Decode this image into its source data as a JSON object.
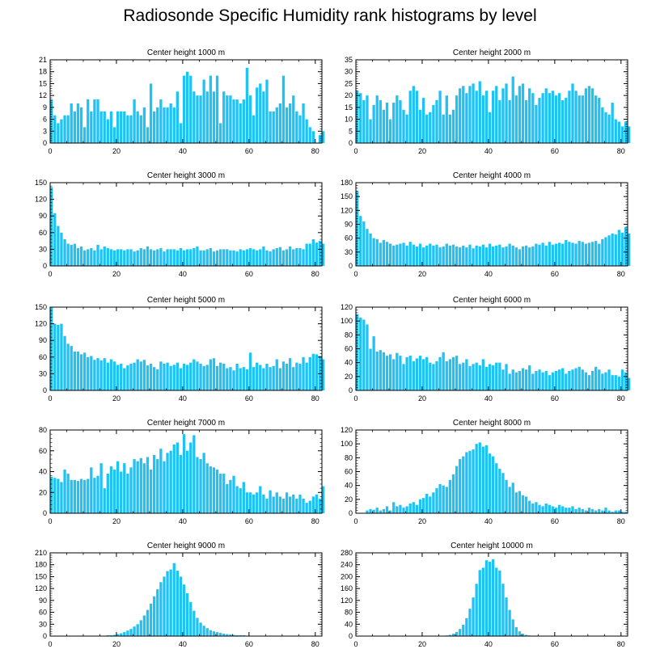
{
  "title": "Radiosonde Specific Humidity rank histograms by level",
  "bar_color": "#1ec2f5",
  "chart_data": [
    {
      "type": "bar",
      "title": "Center height 1000 m",
      "xlabel": "",
      "ylabel": "",
      "xlim": [
        0,
        82
      ],
      "ylim": [
        0,
        21
      ],
      "xticks": [
        0,
        20,
        40,
        60,
        80
      ],
      "yticks": [
        0,
        3,
        6,
        9,
        12,
        15,
        18,
        21
      ],
      "values": [
        11,
        7,
        5,
        6,
        7,
        7,
        10,
        8,
        10,
        9,
        4,
        11,
        8,
        11,
        11,
        8,
        8,
        6,
        8,
        4,
        8,
        8,
        8,
        7,
        7,
        11,
        8,
        7,
        9,
        4,
        15,
        8,
        9,
        11,
        9,
        9,
        10,
        9,
        13,
        5,
        17,
        18,
        17,
        13,
        12,
        12,
        16,
        13,
        17,
        13,
        17,
        5,
        13,
        12,
        12,
        11,
        11,
        10,
        11,
        19,
        12,
        7,
        14,
        15,
        13,
        16,
        8,
        8,
        9,
        10,
        17,
        9,
        10,
        12,
        8,
        7,
        10,
        6,
        4,
        3,
        0,
        2,
        3
      ]
    },
    {
      "type": "bar",
      "title": "Center height 2000 m",
      "xlabel": "",
      "ylabel": "",
      "xlim": [
        0,
        82
      ],
      "ylim": [
        0,
        35
      ],
      "xticks": [
        0,
        20,
        40,
        60,
        80
      ],
      "yticks": [
        0,
        5,
        10,
        15,
        20,
        25,
        30,
        35
      ],
      "values": [
        22,
        21,
        18,
        20,
        10,
        16,
        20,
        18,
        14,
        17,
        10,
        17,
        20,
        18,
        14,
        12,
        22,
        24,
        22,
        14,
        19,
        12,
        13,
        16,
        18,
        22,
        12,
        20,
        12,
        14,
        20,
        23,
        24,
        21,
        24,
        25,
        22,
        26,
        20,
        22,
        13,
        22,
        24,
        18,
        23,
        25,
        18,
        28,
        20,
        24,
        25,
        18,
        23,
        21,
        16,
        19,
        21,
        23,
        21,
        22,
        20,
        21,
        18,
        19,
        22,
        25,
        22,
        20,
        20,
        23,
        24,
        23,
        20,
        19,
        15,
        13,
        12,
        17,
        10,
        9,
        7,
        9,
        7
      ]
    },
    {
      "type": "bar",
      "title": "Center height 3000 m",
      "xlabel": "",
      "ylabel": "",
      "xlim": [
        0,
        82
      ],
      "ylim": [
        0,
        150
      ],
      "xticks": [
        0,
        20,
        40,
        60,
        80
      ],
      "yticks": [
        0,
        30,
        60,
        90,
        120,
        150
      ],
      "values": [
        142,
        95,
        72,
        60,
        48,
        40,
        38,
        40,
        32,
        35,
        28,
        30,
        32,
        28,
        38,
        30,
        35,
        32,
        30,
        28,
        30,
        30,
        28,
        30,
        30,
        26,
        28,
        32,
        30,
        35,
        30,
        28,
        30,
        32,
        26,
        30,
        30,
        30,
        28,
        32,
        28,
        30,
        30,
        32,
        35,
        28,
        28,
        30,
        32,
        26,
        28,
        30,
        30,
        30,
        28,
        28,
        26,
        30,
        28,
        30,
        32,
        30,
        28,
        30,
        35,
        28,
        26,
        30,
        32,
        34,
        28,
        30,
        35,
        30,
        32,
        32,
        30,
        40,
        40,
        48,
        42,
        45,
        40
      ]
    },
    {
      "type": "bar",
      "title": "Center height 4000 m",
      "xlabel": "",
      "ylabel": "",
      "xlim": [
        0,
        82
      ],
      "ylim": [
        0,
        180
      ],
      "xticks": [
        0,
        20,
        40,
        60,
        80
      ],
      "yticks": [
        0,
        30,
        60,
        90,
        120,
        150,
        180
      ],
      "values": [
        162,
        108,
        96,
        80,
        70,
        60,
        58,
        50,
        56,
        52,
        48,
        44,
        46,
        48,
        50,
        44,
        52,
        46,
        42,
        48,
        40,
        44,
        48,
        44,
        46,
        40,
        42,
        48,
        44,
        46,
        42,
        40,
        44,
        40,
        46,
        38,
        44,
        42,
        46,
        40,
        48,
        42,
        44,
        46,
        40,
        42,
        48,
        44,
        40,
        36,
        42,
        44,
        40,
        42,
        48,
        46,
        50,
        44,
        52,
        46,
        48,
        50,
        48,
        56,
        52,
        50,
        48,
        54,
        52,
        48,
        50,
        52,
        54,
        48,
        58,
        62,
        66,
        70,
        68,
        78,
        72,
        84,
        70
      ]
    },
    {
      "type": "bar",
      "title": "Center height 5000 m",
      "xlabel": "",
      "ylabel": "",
      "xlim": [
        0,
        82
      ],
      "ylim": [
        0,
        150
      ],
      "xticks": [
        0,
        20,
        40,
        60,
        80
      ],
      "yticks": [
        0,
        30,
        60,
        90,
        120,
        150
      ],
      "values": [
        150,
        120,
        118,
        120,
        98,
        84,
        80,
        70,
        70,
        65,
        68,
        60,
        62,
        55,
        58,
        54,
        58,
        50,
        56,
        52,
        46,
        48,
        40,
        45,
        48,
        50,
        56,
        52,
        55,
        45,
        48,
        42,
        38,
        52,
        48,
        50,
        44,
        46,
        50,
        40,
        48,
        46,
        50,
        56,
        52,
        48,
        44,
        46,
        56,
        58,
        44,
        50,
        48,
        40,
        42,
        36,
        48,
        40,
        42,
        38,
        68,
        42,
        50,
        46,
        40,
        48,
        42,
        44,
        56,
        40,
        52,
        48,
        58,
        42,
        50,
        48,
        60,
        50,
        60,
        66,
        65,
        62,
        56
      ]
    },
    {
      "type": "bar",
      "title": "Center height 6000 m",
      "xlabel": "",
      "ylabel": "",
      "xlim": [
        0,
        82
      ],
      "ylim": [
        0,
        120
      ],
      "xticks": [
        0,
        20,
        40,
        60,
        80
      ],
      "yticks": [
        0,
        20,
        40,
        60,
        80,
        100,
        120
      ],
      "values": [
        110,
        105,
        102,
        95,
        60,
        78,
        56,
        58,
        55,
        50,
        52,
        45,
        54,
        50,
        38,
        48,
        50,
        42,
        46,
        50,
        45,
        48,
        40,
        38,
        42,
        48,
        55,
        42,
        45,
        48,
        50,
        38,
        40,
        45,
        35,
        38,
        40,
        36,
        45,
        34,
        38,
        36,
        40,
        40,
        30,
        38,
        24,
        30,
        26,
        28,
        32,
        30,
        36,
        24,
        28,
        30,
        26,
        28,
        22,
        26,
        28,
        30,
        32,
        24,
        28,
        30,
        32,
        34,
        30,
        26,
        22,
        28,
        34,
        30,
        24,
        26,
        30,
        22,
        22,
        20,
        30,
        26,
        18
      ]
    },
    {
      "type": "bar",
      "title": "Center height 7000 m",
      "xlabel": "",
      "ylabel": "",
      "xlim": [
        0,
        82
      ],
      "ylim": [
        0,
        80
      ],
      "xticks": [
        0,
        20,
        40,
        60,
        80
      ],
      "yticks": [
        0,
        20,
        40,
        60,
        80
      ],
      "values": [
        35,
        34,
        33,
        30,
        42,
        38,
        32,
        32,
        31,
        33,
        32,
        33,
        44,
        34,
        36,
        48,
        24,
        38,
        45,
        42,
        50,
        40,
        48,
        38,
        44,
        52,
        50,
        53,
        48,
        54,
        42,
        56,
        52,
        62,
        50,
        58,
        60,
        66,
        68,
        56,
        76,
        60,
        68,
        75,
        54,
        52,
        58,
        48,
        45,
        44,
        42,
        38,
        38,
        28,
        32,
        36,
        26,
        24,
        30,
        20,
        20,
        18,
        20,
        26,
        18,
        14,
        22,
        16,
        20,
        16,
        14,
        20,
        16,
        18,
        14,
        18,
        14,
        10,
        12,
        16,
        18,
        14,
        26
      ]
    },
    {
      "type": "bar",
      "title": "Center height 8000 m",
      "xlabel": "",
      "ylabel": "",
      "xlim": [
        0,
        82
      ],
      "ylim": [
        0,
        120
      ],
      "xticks": [
        0,
        20,
        40,
        60,
        80
      ],
      "yticks": [
        0,
        20,
        40,
        60,
        80,
        100,
        120
      ],
      "values": [
        0,
        0,
        0,
        4,
        6,
        5,
        8,
        4,
        6,
        10,
        4,
        16,
        10,
        12,
        8,
        10,
        14,
        16,
        12,
        20,
        22,
        28,
        24,
        30,
        36,
        42,
        40,
        38,
        48,
        56,
        68,
        78,
        82,
        88,
        90,
        92,
        100,
        102,
        96,
        98,
        86,
        82,
        72,
        64,
        58,
        48,
        38,
        44,
        30,
        32,
        26,
        24,
        18,
        14,
        16,
        12,
        10,
        14,
        12,
        10,
        8,
        12,
        10,
        8,
        8,
        10,
        6,
        8,
        6,
        4,
        8,
        6,
        4,
        6,
        4,
        8,
        4,
        2,
        4,
        4,
        2,
        2,
        0
      ]
    },
    {
      "type": "bar",
      "title": "Center height 9000 m",
      "xlabel": "",
      "ylabel": "",
      "xlim": [
        0,
        82
      ],
      "ylim": [
        0,
        210
      ],
      "xticks": [
        0,
        20,
        40,
        60,
        80
      ],
      "yticks": [
        0,
        30,
        60,
        90,
        120,
        150,
        180,
        210
      ],
      "values": [
        1,
        1,
        1,
        1,
        1,
        1,
        1,
        1,
        1,
        1,
        1,
        1,
        1,
        1,
        1,
        1,
        1,
        2,
        2,
        3,
        5,
        7,
        10,
        14,
        18,
        24,
        30,
        40,
        52,
        66,
        82,
        100,
        118,
        136,
        150,
        164,
        168,
        184,
        165,
        150,
        130,
        108,
        86,
        64,
        46,
        34,
        26,
        20,
        15,
        12,
        10,
        8,
        6,
        5,
        4,
        3,
        2,
        2,
        2,
        1,
        1,
        1,
        1,
        1,
        1,
        1,
        1,
        0,
        0,
        0,
        0,
        0,
        0,
        0,
        0,
        0,
        0,
        0,
        0,
        0,
        0,
        0,
        0
      ]
    },
    {
      "type": "bar",
      "title": "Center height 10000 m",
      "xlabel": "",
      "ylabel": "",
      "xlim": [
        0,
        82
      ],
      "ylim": [
        0,
        280
      ],
      "xticks": [
        0,
        20,
        40,
        60,
        80
      ],
      "yticks": [
        0,
        40,
        80,
        120,
        160,
        200,
        240,
        280
      ],
      "values": [
        0,
        0,
        0,
        0,
        0,
        0,
        0,
        0,
        0,
        0,
        0,
        0,
        0,
        0,
        0,
        0,
        0,
        0,
        0,
        0,
        0,
        0,
        0,
        0,
        0,
        0,
        1,
        2,
        4,
        8,
        14,
        24,
        38,
        60,
        92,
        130,
        176,
        222,
        230,
        255,
        250,
        258,
        230,
        220,
        176,
        130,
        88,
        56,
        30,
        16,
        8,
        4,
        2,
        1,
        1,
        0,
        0,
        0,
        0,
        0,
        0,
        0,
        0,
        0,
        0,
        0,
        0,
        0,
        0,
        0,
        0,
        0,
        0,
        0,
        0,
        0,
        0,
        0,
        0,
        0,
        0,
        0,
        0
      ]
    }
  ]
}
